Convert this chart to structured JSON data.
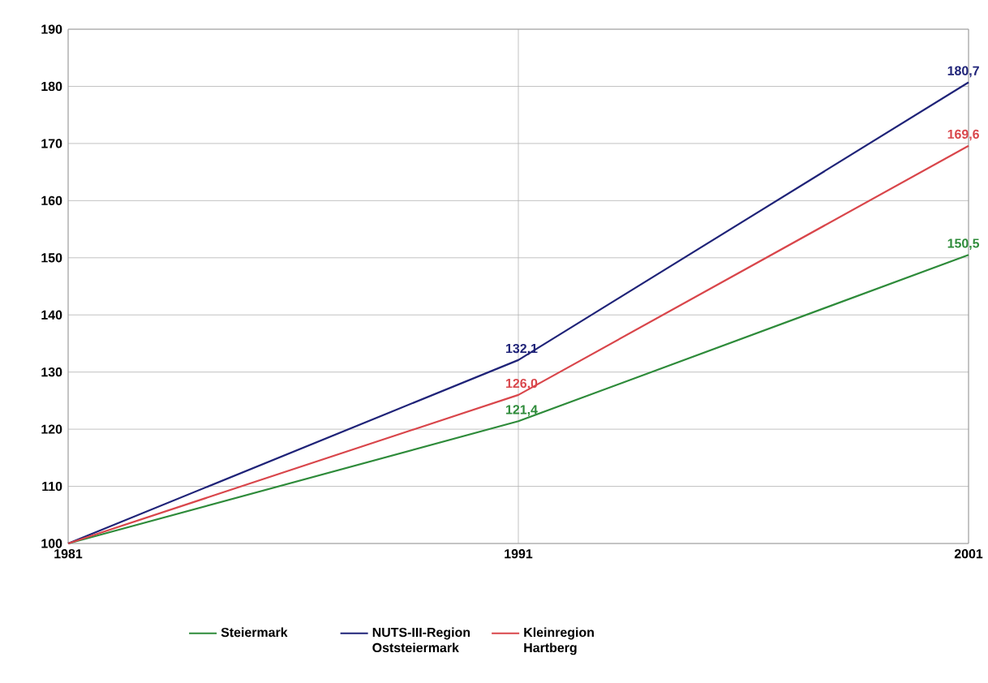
{
  "chart_data": {
    "type": "line",
    "categories": [
      "1981",
      "1991",
      "2001"
    ],
    "series": [
      {
        "name": "Steiermark",
        "color": "#2e8b3a",
        "values": [
          100,
          121.4,
          150.5
        ],
        "value_labels": [
          null,
          "121,4",
          "150,5"
        ]
      },
      {
        "name": "NUTS-III-Region Oststeiermark",
        "color": "#1f2378",
        "values": [
          100,
          132.1,
          180.7
        ],
        "value_labels": [
          null,
          "132,1",
          "180,7"
        ]
      },
      {
        "name": "Kleinregion Hartberg",
        "color": "#d9464b",
        "values": [
          100,
          126.0,
          169.6
        ],
        "value_labels": [
          null,
          "126,0",
          "169,6"
        ]
      }
    ],
    "ylim": [
      100,
      190
    ],
    "yticks": [
      100,
      110,
      120,
      130,
      140,
      150,
      160,
      170,
      180,
      190
    ],
    "grid": true,
    "legend": "bottom",
    "marker": "none",
    "line_style": "solid"
  }
}
